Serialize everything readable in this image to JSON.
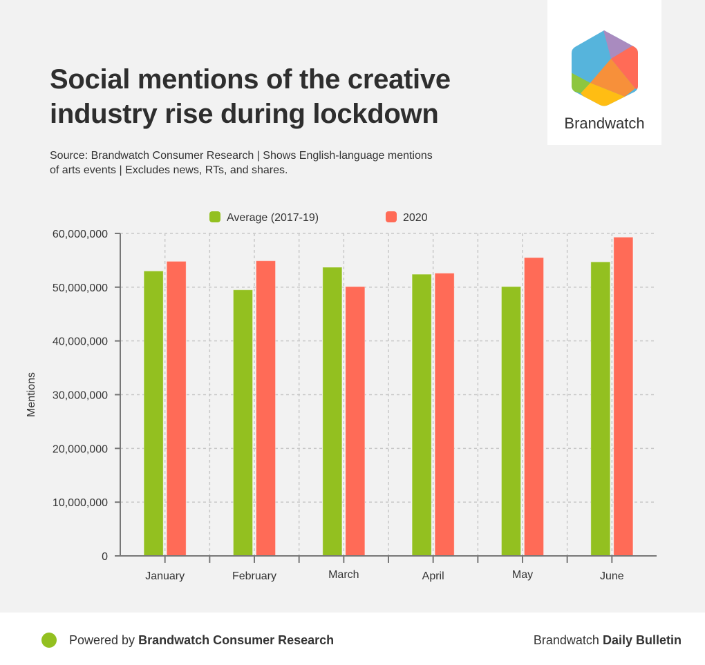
{
  "header": {
    "title": "Social mentions of the creative industry rise during lockdown",
    "subtitle": "Source: Brandwatch Consumer Research | Shows English-language mentions of arts events | Excludes news, RTs, and shares.",
    "logo_text": "Brandwatch"
  },
  "footer": {
    "powered_prefix": "Powered by",
    "powered_brand": "Brandwatch Consumer Research",
    "right_prefix": "Brandwatch",
    "right_brand": "Daily Bulletin"
  },
  "colors": {
    "average": "#93c020",
    "y2020": "#ff6b57",
    "footer_dot": "#93c020"
  },
  "chart_data": {
    "type": "bar",
    "title": "Social mentions of the creative industry rise during lockdown",
    "xlabel": "",
    "ylabel": "Mentions",
    "ylim": [
      0,
      60000000
    ],
    "yticks": [
      0,
      10000000,
      20000000,
      30000000,
      40000000,
      50000000,
      60000000
    ],
    "ytick_labels": [
      "0",
      "10,000,000",
      "20,000,000",
      "30,000,000",
      "40,000,000",
      "50,000,000",
      "60,000,000"
    ],
    "grid": true,
    "legend_position": "top-center",
    "categories": [
      "January",
      "February",
      "March",
      "April",
      "May",
      "June"
    ],
    "series": [
      {
        "name": "Average (2017-19)",
        "color": "#93c020",
        "values": [
          53000000,
          49500000,
          53700000,
          52400000,
          50100000,
          54700000
        ]
      },
      {
        "name": "2020",
        "color": "#ff6b57",
        "values": [
          54800000,
          54900000,
          50100000,
          52600000,
          55500000,
          59300000
        ]
      }
    ]
  }
}
